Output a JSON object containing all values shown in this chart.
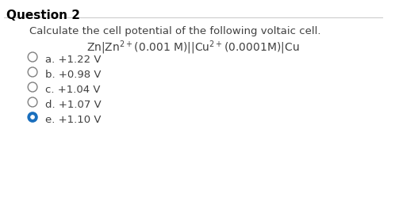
{
  "title": "Question 2",
  "question_text": "Calculate the cell potential of the following voltaic cell.",
  "formula_line1": "Zn|Zn",
  "formula_line2": "(0.001 ",
  "formula_line3": "M)||Cu",
  "formula_line4": "(0.0001M)|Cu",
  "options": [
    {
      "label": "a. +1.22 V",
      "selected": false
    },
    {
      "label": "b. +0.98 V",
      "selected": false
    },
    {
      "label": "c. +1.04 V",
      "selected": false
    },
    {
      "label": "d. +1.07 V",
      "selected": false
    },
    {
      "label": "e. +1.10 V",
      "selected": true
    }
  ],
  "bg_color": "#ffffff",
  "title_color": "#000000",
  "text_color": "#404040",
  "selected_circle_color": "#1a6fbd",
  "unselected_circle_color": "#808080",
  "title_fontsize": 11,
  "text_fontsize": 9.5,
  "option_fontsize": 9.5
}
